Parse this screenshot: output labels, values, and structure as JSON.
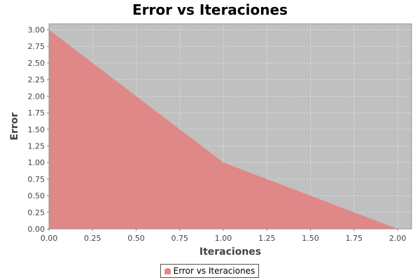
{
  "chart_data": {
    "type": "area",
    "title": "Error vs Iteraciones",
    "xlabel": "Iteraciones",
    "ylabel": "Error",
    "xlim": [
      0,
      2.08
    ],
    "ylim": [
      0,
      3.09
    ],
    "x_ticks": [
      "0.00",
      "0.25",
      "0.50",
      "0.75",
      "1.00",
      "1.25",
      "1.50",
      "1.75",
      "2.00"
    ],
    "y_ticks": [
      "0.00",
      "0.25",
      "0.50",
      "0.75",
      "1.00",
      "1.25",
      "1.50",
      "1.75",
      "2.00",
      "2.25",
      "2.50",
      "2.75",
      "3.00"
    ],
    "grid": true,
    "legend_position": "bottom-center",
    "series": [
      {
        "name": "Error vs Iteraciones",
        "x": [
          0,
          1,
          2
        ],
        "y": [
          3,
          1,
          0
        ],
        "color": "#e08888"
      }
    ],
    "plot_background": "#c0c0c0",
    "grid_color": "#e6e6e6"
  }
}
